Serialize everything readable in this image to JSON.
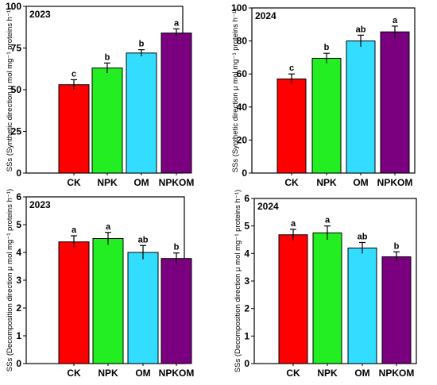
{
  "chart_data": [
    {
      "type": "bar",
      "title": "2023",
      "ylabel": "SSs (Synthetic direction μ mol mg⁻¹ proteins h⁻¹)",
      "categories": [
        "CK",
        "NPK",
        "OM",
        "NPKOM"
      ],
      "values": [
        53,
        63,
        72,
        84
      ],
      "errors": [
        3,
        3,
        2,
        2.5
      ],
      "significance": [
        "c",
        "b",
        "b",
        "a"
      ],
      "colors": [
        "#ff0000",
        "#22ee22",
        "#33ddff",
        "#7a0080"
      ],
      "ylim": [
        0,
        100
      ],
      "yticks": [
        0,
        25,
        50,
        75,
        100
      ],
      "ytick_labels": [
        "0",
        "25",
        "50",
        "75",
        "100"
      ]
    },
    {
      "type": "bar",
      "title": "2024",
      "ylabel": "SSs (Synthetic direction μ mol mg⁻¹ proteins h⁻¹)",
      "categories": [
        "CK",
        "NPK",
        "OM",
        "NPKOM"
      ],
      "values": [
        57,
        69.5,
        80,
        85.5
      ],
      "errors": [
        3,
        3,
        3.5,
        3.5
      ],
      "significance": [
        "c",
        "b",
        "ab",
        "a"
      ],
      "colors": [
        "#ff0000",
        "#22ee22",
        "#33ddff",
        "#7a0080"
      ],
      "ylim": [
        0,
        100
      ],
      "yticks": [
        0,
        20,
        40,
        60,
        80,
        100
      ],
      "ytick_labels": [
        "0",
        "20",
        "40",
        "60",
        "80",
        "100"
      ]
    },
    {
      "type": "bar",
      "title": "2023",
      "ylabel": "SSs (Decomposition direction μ mol mg⁻¹ proteins h⁻¹)",
      "categories": [
        "CK",
        "NPK",
        "OM",
        "NPKOM"
      ],
      "values": [
        4.38,
        4.5,
        4.0,
        3.78
      ],
      "errors": [
        0.22,
        0.22,
        0.25,
        0.2
      ],
      "significance": [
        "a",
        "a",
        "ab",
        "b"
      ],
      "colors": [
        "#ff0000",
        "#22ee22",
        "#33ddff",
        "#7a0080"
      ],
      "ylim": [
        0,
        6
      ],
      "yticks": [
        0,
        1,
        2,
        3,
        4,
        5,
        6
      ],
      "ytick_labels": [
        "0",
        "1",
        "2",
        "3",
        "4",
        "5",
        "6"
      ]
    },
    {
      "type": "bar",
      "title": "2024",
      "ylabel": "SSs (Decomposition direction μ mol mg⁻¹ proteins h⁻¹)",
      "categories": [
        "CK",
        "NPK",
        "OM",
        "NPKOM"
      ],
      "values": [
        4.68,
        4.75,
        4.2,
        3.88
      ],
      "errors": [
        0.2,
        0.25,
        0.2,
        0.18
      ],
      "significance": [
        "a",
        "a",
        "ab",
        "b"
      ],
      "colors": [
        "#ff0000",
        "#22ee22",
        "#33ddff",
        "#7a0080"
      ],
      "ylim": [
        0,
        6
      ],
      "yticks": [
        0,
        1,
        2,
        3,
        4,
        5,
        6
      ],
      "ytick_labels": [
        "0",
        "1",
        "2",
        "3",
        "4",
        "5",
        "6"
      ]
    }
  ]
}
